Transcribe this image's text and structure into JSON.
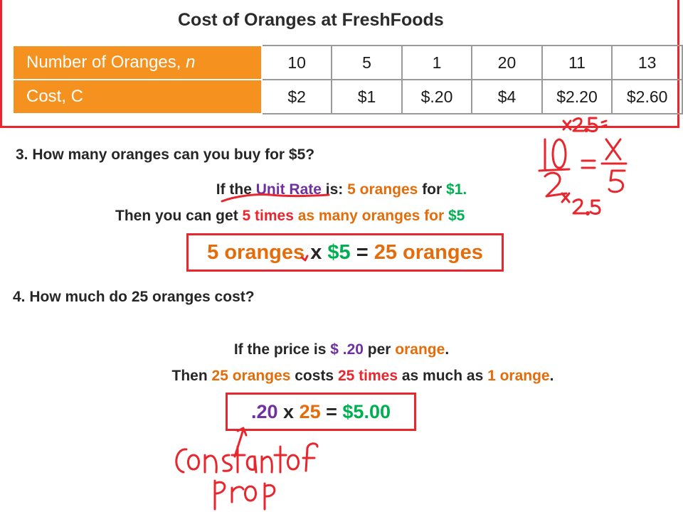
{
  "table": {
    "title": "Cost of Oranges at FreshFoods",
    "row1": {
      "label": "Number of Oranges, ",
      "var": "n",
      "values": [
        "10",
        "5",
        "1",
        "20",
        "11",
        "13"
      ]
    },
    "row2": {
      "label": "Cost, C",
      "values": [
        "$2",
        "$1",
        "$.20",
        "$4",
        "$2.20",
        "$2.60"
      ]
    }
  },
  "q3": {
    "question": "3. How many oranges can you buy for $5?",
    "line1": [
      "If the ",
      "Unit Rate",
      " is: ",
      "5 oranges",
      " for ",
      "$1."
    ],
    "line2": [
      "Then you can get ",
      "5 times",
      " as many oranges for ",
      "$5"
    ],
    "answer": [
      "5 oranges",
      " x ",
      "$5",
      " = ",
      "25 oranges"
    ]
  },
  "q4": {
    "question": "4. How much do 25 oranges cost?",
    "line1": [
      "If the price is ",
      "$ .20",
      " per ",
      "orange",
      "."
    ],
    "line2": [
      "Then ",
      "25 oranges",
      " costs ",
      "25 times",
      " as much as ",
      "1 orange",
      "."
    ],
    "answer": [
      ".20",
      " x ",
      "25",
      " = ",
      "$5.00"
    ]
  },
  "colors": {
    "border_red": "#e8262e",
    "orange": "#e46c0a",
    "green": "#00b050",
    "purple": "#7030a0",
    "ink_red": "#e8262e",
    "table_header": "#f4911f"
  }
}
